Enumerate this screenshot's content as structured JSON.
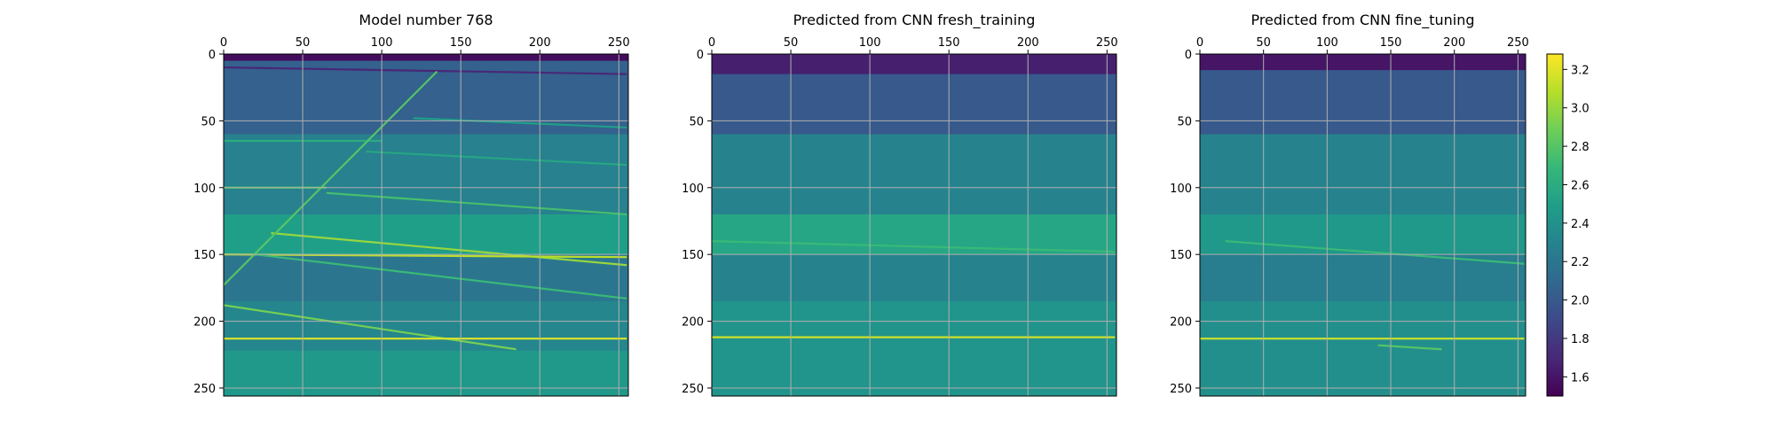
{
  "colormap": {
    "name": "viridis",
    "stops": [
      "#440154",
      "#482878",
      "#3e4989",
      "#31688e",
      "#26828e",
      "#1f9e89",
      "#35b779",
      "#6ece58",
      "#b5de2b",
      "#fde725"
    ]
  },
  "chart_data": [
    {
      "type": "heatmap",
      "title": "Model number 768",
      "xlabel": "",
      "ylabel": "",
      "x_ticks": [
        0,
        50,
        100,
        150,
        200,
        250
      ],
      "y_ticks": [
        0,
        50,
        100,
        150,
        200,
        250
      ],
      "xlim": [
        0,
        255
      ],
      "ylim": [
        255,
        0
      ],
      "x_axis_position": "top",
      "grid": true,
      "clim": [
        1.5,
        3.28
      ],
      "layers": [
        {
          "from_depth": 0,
          "to_depth": 5,
          "value": 1.55
        },
        {
          "from_depth": 5,
          "to_depth": 60,
          "value": 2.05
        },
        {
          "from_depth": 60,
          "to_depth": 120,
          "value": 2.28
        },
        {
          "from_depth": 120,
          "to_depth": 150,
          "value": 2.5
        },
        {
          "from_depth": 150,
          "to_depth": 185,
          "value": 2.2
        },
        {
          "from_depth": 185,
          "to_depth": 222,
          "value": 2.32
        },
        {
          "from_depth": 222,
          "to_depth": 256,
          "value": 2.45
        }
      ],
      "reflectors": [
        {
          "x": [
            0,
            255
          ],
          "depth": [
            10,
            15
          ],
          "value": 1.7
        },
        {
          "x": [
            120,
            255
          ],
          "depth": [
            48,
            55
          ],
          "value": 2.5
        },
        {
          "x": [
            0,
            100
          ],
          "depth": [
            65,
            65
          ],
          "value": 2.6
        },
        {
          "x": [
            90,
            255
          ],
          "depth": [
            73,
            83
          ],
          "value": 2.55
        },
        {
          "x": [
            0,
            65
          ],
          "depth": [
            100,
            100
          ],
          "value": 2.8
        },
        {
          "x": [
            65,
            255
          ],
          "depth": [
            104,
            120
          ],
          "value": 2.75
        },
        {
          "x": [
            30,
            255
          ],
          "depth": [
            134,
            158
          ],
          "value": 3.0
        },
        {
          "x": [
            0,
            255
          ],
          "depth": [
            150,
            152
          ],
          "value": 3.1
        },
        {
          "x": [
            20,
            255
          ],
          "depth": [
            150,
            183
          ],
          "value": 2.7
        },
        {
          "x": [
            0,
            185
          ],
          "depth": [
            188,
            221
          ],
          "value": 2.9
        },
        {
          "x": [
            0,
            255
          ],
          "depth": [
            213,
            213
          ],
          "value": 3.2
        },
        {
          "x": [
            0,
            135
          ],
          "depth": [
            173,
            13
          ],
          "value": 2.8
        }
      ]
    },
    {
      "type": "heatmap",
      "title": "Predicted from CNN fresh_training",
      "xlabel": "",
      "ylabel": "",
      "x_ticks": [
        0,
        50,
        100,
        150,
        200,
        250
      ],
      "y_ticks": [
        0,
        50,
        100,
        150,
        200,
        250
      ],
      "xlim": [
        0,
        255
      ],
      "ylim": [
        255,
        0
      ],
      "x_axis_position": "top",
      "grid": true,
      "clim": [
        1.5,
        3.28
      ],
      "layers": [
        {
          "from_depth": 0,
          "to_depth": 15,
          "value": 1.65
        },
        {
          "from_depth": 15,
          "to_depth": 60,
          "value": 2.0
        },
        {
          "from_depth": 60,
          "to_depth": 120,
          "value": 2.3
        },
        {
          "from_depth": 120,
          "to_depth": 150,
          "value": 2.55
        },
        {
          "from_depth": 150,
          "to_depth": 185,
          "value": 2.3
        },
        {
          "from_depth": 185,
          "to_depth": 256,
          "value": 2.42
        }
      ],
      "reflectors": [
        {
          "x": [
            0,
            255
          ],
          "depth": [
            140,
            148
          ],
          "value": 2.7
        },
        {
          "x": [
            0,
            255
          ],
          "depth": [
            212,
            212
          ],
          "value": 3.15
        }
      ]
    },
    {
      "type": "heatmap",
      "title": "Predicted from CNN fine_tuning",
      "xlabel": "",
      "ylabel": "",
      "x_ticks": [
        0,
        50,
        100,
        150,
        200,
        250
      ],
      "y_ticks": [
        0,
        50,
        100,
        150,
        200,
        250
      ],
      "xlim": [
        0,
        255
      ],
      "ylim": [
        255,
        0
      ],
      "x_axis_position": "top",
      "grid": true,
      "clim": [
        1.5,
        3.28
      ],
      "layers": [
        {
          "from_depth": 0,
          "to_depth": 12,
          "value": 1.6
        },
        {
          "from_depth": 12,
          "to_depth": 60,
          "value": 2.0
        },
        {
          "from_depth": 60,
          "to_depth": 120,
          "value": 2.3
        },
        {
          "from_depth": 120,
          "to_depth": 150,
          "value": 2.45
        },
        {
          "from_depth": 150,
          "to_depth": 185,
          "value": 2.25
        },
        {
          "from_depth": 185,
          "to_depth": 256,
          "value": 2.38
        }
      ],
      "reflectors": [
        {
          "x": [
            20,
            255
          ],
          "depth": [
            140,
            157
          ],
          "value": 2.7
        },
        {
          "x": [
            0,
            255
          ],
          "depth": [
            213,
            213
          ],
          "value": 3.15
        },
        {
          "x": [
            140,
            190
          ],
          "depth": [
            218,
            221
          ],
          "value": 2.8
        }
      ]
    }
  ],
  "colorbar": {
    "ticks": [
      1.6,
      1.8,
      2.0,
      2.2,
      2.4,
      2.6,
      2.8,
      3.0,
      3.2
    ],
    "tick_labels": [
      "1.6",
      "1.8",
      "2.0",
      "2.2",
      "2.4",
      "2.6",
      "2.8",
      "3.0",
      "3.2"
    ],
    "range": [
      1.5,
      3.28
    ]
  }
}
